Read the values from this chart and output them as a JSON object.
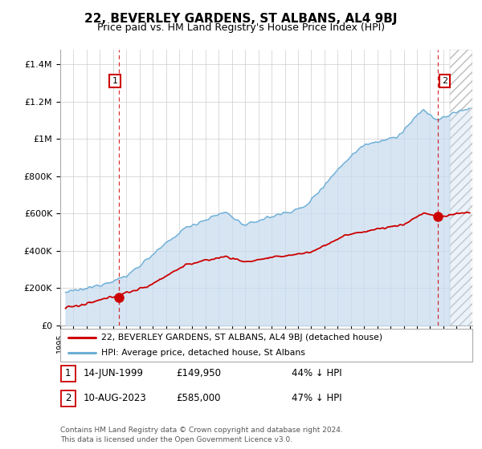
{
  "title": "22, BEVERLEY GARDENS, ST ALBANS, AL4 9BJ",
  "subtitle": "Price paid vs. HM Land Registry's House Price Index (HPI)",
  "ylabel_ticks": [
    "£0",
    "£200K",
    "£400K",
    "£600K",
    "£800K",
    "£1M",
    "£1.2M",
    "£1.4M"
  ],
  "ytick_values": [
    0,
    200000,
    400000,
    600000,
    800000,
    1000000,
    1200000,
    1400000
  ],
  "ylim": [
    0,
    1480000
  ],
  "xlim_start": 1995.3,
  "xlim_end": 2026.2,
  "hpi_color": "#6baed6",
  "hpi_fill_color": "#c6dbef",
  "price_color": "#cc0000",
  "marker1_date": 1999.45,
  "marker1_price": 149950,
  "marker2_date": 2023.6,
  "marker2_price": 585000,
  "future_start": 2024.5,
  "legend_line1": "22, BEVERLEY GARDENS, ST ALBANS, AL4 9BJ (detached house)",
  "legend_line2": "HPI: Average price, detached house, St Albans",
  "table_row1": [
    "1",
    "14-JUN-1999",
    "£149,950",
    "44% ↓ HPI"
  ],
  "table_row2": [
    "2",
    "10-AUG-2023",
    "£585,000",
    "47% ↓ HPI"
  ],
  "footer": "Contains HM Land Registry data © Crown copyright and database right 2024.\nThis data is licensed under the Open Government Licence v3.0.",
  "grid_color": "#cccccc",
  "background_color": "#ffffff"
}
